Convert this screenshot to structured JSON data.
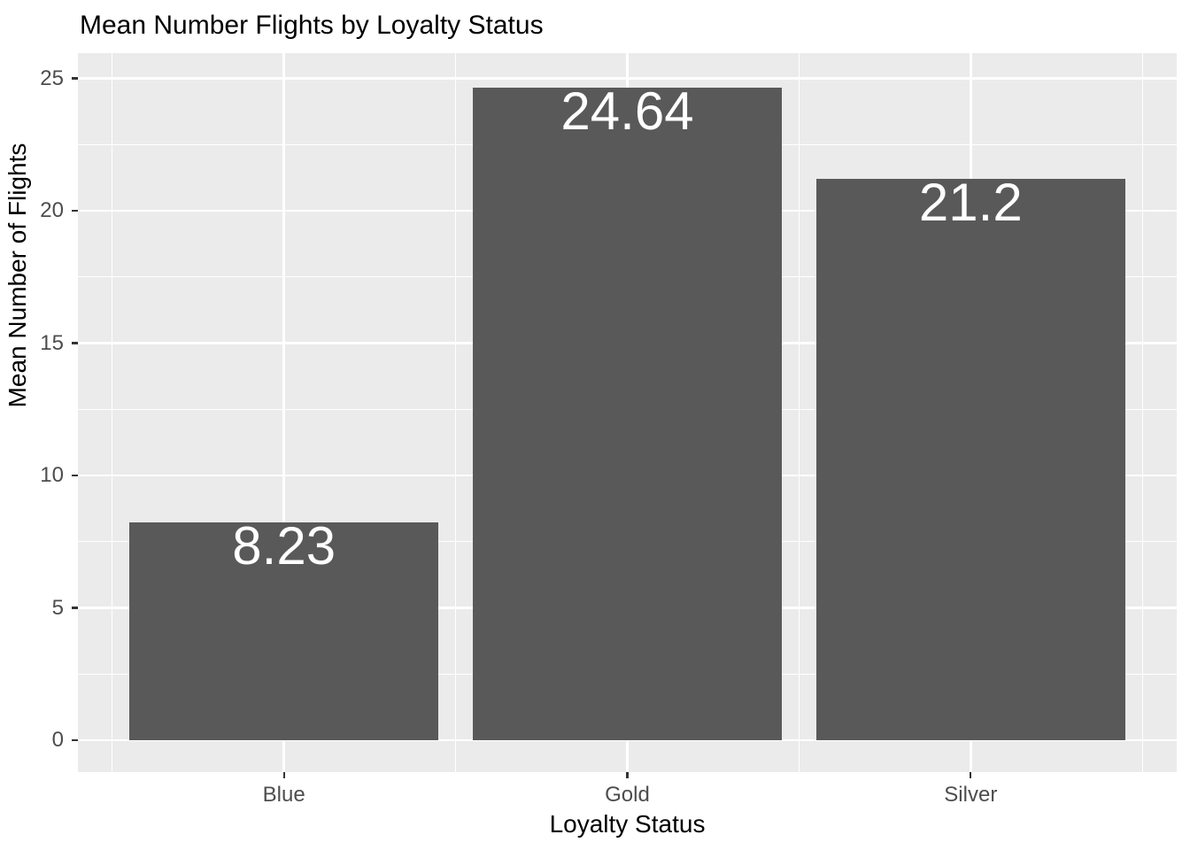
{
  "chart_data": {
    "type": "bar",
    "title": "Mean Number Flights by Loyalty Status",
    "xlabel": "Loyalty Status",
    "ylabel": "Mean Number of Flights",
    "categories": [
      "Blue",
      "Gold",
      "Silver"
    ],
    "values": [
      8.23,
      24.64,
      21.2
    ],
    "bar_labels": [
      "8.23",
      "24.64",
      "21.2"
    ],
    "y_ticks": [
      0,
      5,
      10,
      15,
      20,
      25
    ],
    "y_tick_labels": [
      "0",
      "5",
      "10",
      "15",
      "20",
      "25"
    ],
    "ylim": [
      -1.23,
      25.95
    ],
    "grid": {
      "major": true,
      "minor": true
    },
    "legend": "none",
    "theme": "ggplot-grey",
    "colors": {
      "bar_fill": "#595959",
      "panel_background": "#EBEBEB",
      "gridline": "#FFFFFF",
      "tick_label": "#4D4D4D",
      "tick_mark": "#333333",
      "axis_title": "#000000",
      "title": "#000000",
      "bar_label": "#FFFFFF",
      "figure_background": "#FFFFFF"
    }
  }
}
